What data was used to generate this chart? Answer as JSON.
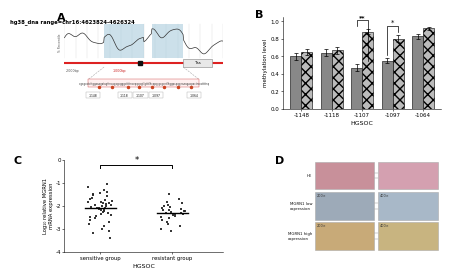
{
  "title_A": "hg38_dna range=chr16:4623824-4626324",
  "panel_B": {
    "categories": [
      "-1148",
      "-1118",
      "-1107",
      "-1097",
      "-1064"
    ],
    "group1_values": [
      0.6,
      0.64,
      0.47,
      0.55,
      0.83
    ],
    "group2_values": [
      0.65,
      0.67,
      0.88,
      0.8,
      0.92
    ],
    "group1_errors": [
      0.04,
      0.04,
      0.04,
      0.03,
      0.03
    ],
    "group2_errors": [
      0.03,
      0.04,
      0.03,
      0.04,
      0.02
    ],
    "group1_color": "#888888",
    "group2_hatch": "xxx",
    "xlabel": "HGSOC",
    "ylabel": "methylation level",
    "ylim": [
      0.0,
      1.05
    ],
    "yticks": [
      0.0,
      0.2,
      0.4,
      0.6,
      0.8,
      1.0
    ]
  },
  "panel_C": {
    "sensitive_points": [
      -1.05,
      -1.2,
      -1.3,
      -1.4,
      -1.45,
      -1.5,
      -1.55,
      -1.6,
      -1.65,
      -1.7,
      -1.75,
      -1.8,
      -1.82,
      -1.85,
      -1.87,
      -1.9,
      -1.92,
      -1.95,
      -1.98,
      -2.0,
      -2.02,
      -2.05,
      -2.08,
      -2.1,
      -2.12,
      -2.15,
      -2.18,
      -2.2,
      -2.25,
      -2.28,
      -2.3,
      -2.35,
      -2.4,
      -2.45,
      -2.5,
      -2.55,
      -2.6,
      -2.7,
      -2.8,
      -2.9,
      -3.0,
      -3.1,
      -3.2,
      -3.4
    ],
    "resistant_points": [
      -1.5,
      -1.7,
      -1.85,
      -1.9,
      -1.95,
      -2.0,
      -2.05,
      -2.1,
      -2.15,
      -2.18,
      -2.2,
      -2.22,
      -2.25,
      -2.28,
      -2.3,
      -2.32,
      -2.35,
      -2.38,
      -2.4,
      -2.45,
      -2.5,
      -2.55,
      -2.6,
      -2.7,
      -2.8,
      -2.9,
      -3.0,
      -3.1
    ],
    "xlabel": "HGSOC",
    "ylabel": "Log₁₀ relative MGRN1\nmRNA expression",
    "ylim": [
      -4,
      0
    ],
    "yticks": [
      0,
      -1,
      -2,
      -3,
      -4
    ],
    "point_color": "#222222",
    "sig_label": "*"
  },
  "panel_D": {
    "row_labels": [
      "HE",
      "MGRN1 low\nexpression",
      "MGRN1 high\nexpression"
    ],
    "row_colors_left": [
      "#c8909a",
      "#9daab8",
      "#c8aa78"
    ],
    "row_colors_right": [
      "#d4a0b0",
      "#a8b8c8",
      "#c8b480"
    ],
    "mag_labels": [
      [
        "",
        ""
      ],
      [
        "200×",
        "400×"
      ],
      [
        "200×",
        "400×"
      ]
    ]
  },
  "background_color": "#ffffff",
  "panel_label_fontsize": 8
}
